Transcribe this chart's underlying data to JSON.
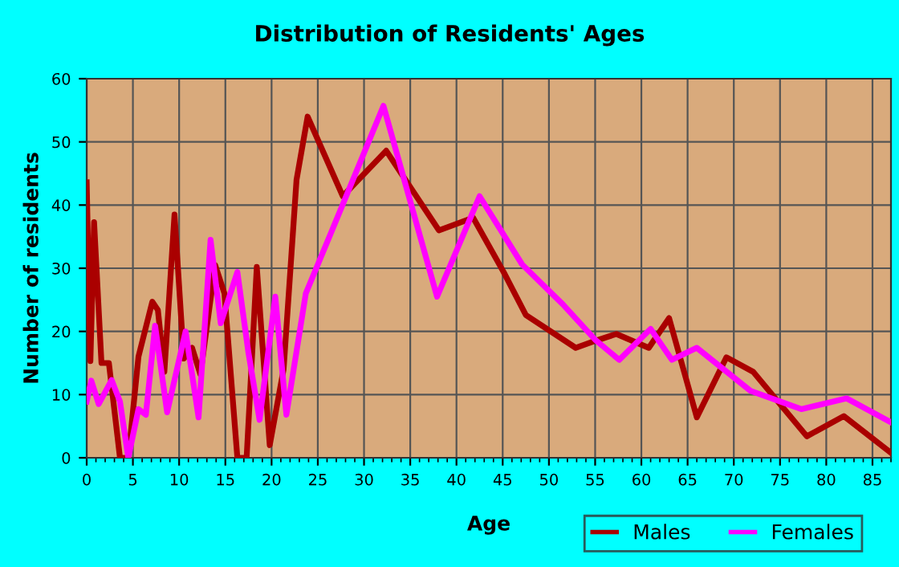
{
  "chart_data": {
    "type": "line",
    "title": "Distribution of Residents' Ages",
    "xlabel": "Age",
    "ylabel": "Number of residents",
    "xlim": [
      0,
      87
    ],
    "xticks": [
      0,
      5,
      10,
      15,
      20,
      25,
      30,
      35,
      40,
      45,
      50,
      55,
      60,
      65,
      70,
      75,
      80,
      85
    ],
    "ylim": [
      0,
      60
    ],
    "yticks": [
      0,
      10,
      20,
      30,
      40,
      50,
      60
    ],
    "grid": true,
    "legend": "bottom right",
    "line_style": "solid",
    "marker": "none",
    "series": [
      {
        "name": "Males",
        "color": "#aa0000",
        "x": [
          0,
          0.4,
          0.8,
          1.6,
          2.4,
          3.6,
          4.5,
          5.6,
          7.1,
          7.7,
          8.4,
          9.5,
          10.5,
          11.4,
          12.3,
          13.9,
          14.9,
          16.3,
          17.3,
          18.4,
          19.8,
          21.3,
          22.7,
          23.9,
          27.7,
          32.4,
          38.1,
          41.8,
          45.1,
          47.5,
          52.9,
          55,
          57.3,
          60.8,
          63,
          66,
          69.2,
          72.1,
          77.9,
          81.9,
          86.9
        ],
        "values": [
          43.6,
          15.3,
          37.3,
          15,
          15,
          0,
          0,
          16,
          24.7,
          23.4,
          13.6,
          38.5,
          15.7,
          17.4,
          13.2,
          30.5,
          26,
          0,
          0,
          30.2,
          2,
          14,
          44,
          54,
          41.4,
          48.6,
          36,
          38,
          29.4,
          22.6,
          17.4,
          18.5,
          19.6,
          17.4,
          22.1,
          6.4,
          15.9,
          13.6,
          3.4,
          6.6,
          0.9
        ]
      },
      {
        "name": "Females",
        "color": "#ff00ff",
        "x": [
          0,
          0.5,
          1.3,
          2.7,
          3.6,
          4.5,
          5.6,
          6.4,
          7.4,
          8.7,
          10.7,
          12.1,
          13.4,
          14.5,
          16.3,
          17.5,
          18.7,
          20.4,
          21.6,
          23.7,
          26.6,
          32.1,
          37.9,
          42.5,
          47.1,
          51.5,
          55,
          57.6,
          61,
          63.3,
          66,
          71.8,
          77.3,
          82.2,
          86.9
        ],
        "values": [
          8.9,
          12.2,
          8.5,
          12.3,
          8.9,
          0,
          7.7,
          6.8,
          20.9,
          7.2,
          20,
          6.4,
          34.5,
          21.3,
          29.4,
          16.6,
          6,
          25.5,
          6.8,
          26,
          36.2,
          55.7,
          25.5,
          41.4,
          30.6,
          24.3,
          18.7,
          15.5,
          20.4,
          15.5,
          17.4,
          10.6,
          7.7,
          9.4,
          5.7
        ]
      }
    ]
  }
}
